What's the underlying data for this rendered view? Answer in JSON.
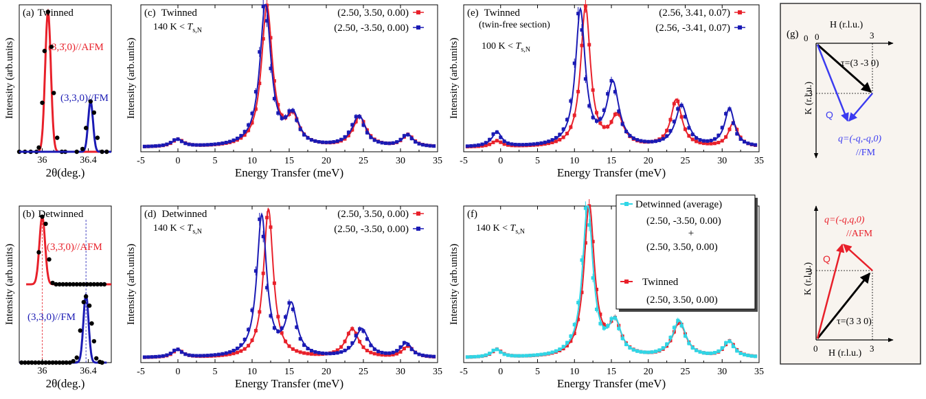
{
  "colors": {
    "red": "#e8202a",
    "blue": "#1a1ab4",
    "cyan": "#2fd6e6",
    "black": "#000000",
    "qblue": "#3b3bf0",
    "inset_bg": "#f8f4ef"
  },
  "chart_data": [
    {
      "id": "a",
      "type": "line",
      "label_prefix": "(a)",
      "title": "Twinned",
      "xlabel": "2θ(deg.)",
      "ylabel": "Intensity (arb.units)",
      "xlim": [
        35.8,
        36.6
      ],
      "ylim": [
        0,
        1.05
      ],
      "xticks": [
        {
          "v": 36,
          "t": "36"
        },
        {
          "v": 36.4,
          "t": "36.4"
        }
      ],
      "peaks": [
        {
          "name": "(3,3̄,0)//AFM",
          "color": "#e8202a",
          "center": 36.05,
          "height": 1.0,
          "width": 0.035,
          "points": [
            [
              35.8,
              0
            ],
            [
              35.85,
              0
            ],
            [
              35.9,
              0
            ],
            [
              35.95,
              0
            ],
            [
              35.97,
              0.03
            ],
            [
              36.0,
              0.35
            ],
            [
              36.02,
              0.72
            ],
            [
              36.05,
              1.0
            ],
            [
              36.08,
              0.75
            ],
            [
              36.1,
              0.42
            ],
            [
              36.13,
              0.1
            ],
            [
              36.17,
              0.0
            ],
            [
              36.2,
              0
            ]
          ]
        },
        {
          "name": "(3,3,0)//FM",
          "color": "#1a1ab4",
          "center": 36.42,
          "height": 0.36,
          "width": 0.03,
          "points": [
            [
              36.3,
              0
            ],
            [
              36.35,
              0.02
            ],
            [
              36.38,
              0.17
            ],
            [
              36.42,
              0.36
            ],
            [
              36.45,
              0.28
            ],
            [
              36.48,
              0.1
            ],
            [
              36.52,
              0.0
            ],
            [
              36.56,
              0
            ]
          ]
        }
      ]
    },
    {
      "id": "b",
      "type": "line",
      "label_prefix": "(b)",
      "title": "Detwinned",
      "xlabel": "2θ(deg.)",
      "ylabel": "Intensity (arb.units)",
      "xlim": [
        35.8,
        36.6
      ],
      "ylim": [
        0,
        2.2
      ],
      "xticks": [
        {
          "v": 36,
          "t": "36"
        },
        {
          "v": 36.4,
          "t": "36.4"
        }
      ],
      "peaks": [
        {
          "name": "(3,3̄,0)//AFM",
          "color": "#e8202a",
          "offset": 1.1,
          "center": 36.0,
          "height": 0.95,
          "width": 0.035,
          "points": [
            [
              35.97,
              1.55
            ],
            [
              36.0,
              2.05
            ],
            [
              36.03,
              1.95
            ],
            [
              36.06,
              1.45
            ],
            [
              36.09,
              1.12
            ],
            [
              36.12,
              1.1
            ],
            [
              36.15,
              1.1
            ],
            [
              36.18,
              1.1
            ],
            [
              36.21,
              1.1
            ],
            [
              36.24,
              1.1
            ],
            [
              36.27,
              1.1
            ],
            [
              36.3,
              1.1
            ],
            [
              36.33,
              1.1
            ],
            [
              36.36,
              1.1
            ],
            [
              36.39,
              1.1
            ],
            [
              36.42,
              1.1
            ],
            [
              36.45,
              1.1
            ],
            [
              36.48,
              1.1
            ],
            [
              36.51,
              1.1
            ],
            [
              36.54,
              1.1
            ]
          ]
        },
        {
          "name": "(3,3,0)//FM",
          "color": "#1a1ab4",
          "offset": 0.0,
          "center": 36.38,
          "height": 0.95,
          "width": 0.032,
          "points": [
            [
              35.82,
              0
            ],
            [
              35.85,
              0
            ],
            [
              35.88,
              0
            ],
            [
              35.91,
              0
            ],
            [
              35.94,
              0
            ],
            [
              35.97,
              0
            ],
            [
              36.0,
              0
            ],
            [
              36.03,
              0
            ],
            [
              36.06,
              0
            ],
            [
              36.09,
              0
            ],
            [
              36.12,
              0
            ],
            [
              36.15,
              0
            ],
            [
              36.18,
              0
            ],
            [
              36.21,
              0
            ],
            [
              36.24,
              0
            ],
            [
              36.27,
              0.02
            ],
            [
              36.3,
              0.07
            ],
            [
              36.33,
              0.45
            ],
            [
              36.36,
              0.85
            ],
            [
              36.38,
              0.93
            ],
            [
              36.41,
              0.8
            ],
            [
              36.43,
              0.55
            ],
            [
              36.45,
              0.3
            ],
            [
              36.47,
              0.06
            ],
            [
              36.5,
              0.01
            ],
            [
              36.52,
              0
            ]
          ]
        }
      ],
      "vlines": [
        {
          "x": 36.0,
          "color": "#e8202a"
        },
        {
          "x": 36.38,
          "color": "#1a1ab4"
        }
      ]
    },
    {
      "id": "c",
      "type": "line",
      "label_prefix": "(c)",
      "title": "Twinned",
      "condition": "140 K < ",
      "condition_T": "T",
      "condition_sub": "s,N",
      "xlabel": "Energy Transfer (meV)",
      "ylabel": "Intensity (arb.units)",
      "xlim": [
        -5,
        35
      ],
      "ylim": [
        0,
        1.0
      ],
      "xticks": [
        -5,
        0,
        5,
        10,
        15,
        20,
        25,
        30,
        35
      ],
      "series": [
        {
          "name": "(2.50, 3.50, 0.00)",
          "color": "#e8202a",
          "base": 0.03,
          "peaks": [
            [
              0,
              0.05,
              0.9
            ],
            [
              12.0,
              0.95,
              0.9
            ],
            [
              15.5,
              0.18,
              1.0
            ],
            [
              24.5,
              0.2,
              1.1
            ],
            [
              31.0,
              0.08,
              0.9
            ]
          ]
        },
        {
          "name": "(2.50, -3.50, 0.00)",
          "color": "#1a1ab4",
          "base": 0.03,
          "peaks": [
            [
              0,
              0.05,
              0.9
            ],
            [
              11.8,
              0.97,
              0.9
            ],
            [
              15.5,
              0.2,
              1.0
            ],
            [
              24.4,
              0.21,
              1.1
            ],
            [
              31.0,
              0.08,
              0.9
            ]
          ]
        }
      ]
    },
    {
      "id": "d",
      "type": "line",
      "label_prefix": "(d)",
      "title": "Detwinned",
      "condition": "140 K < ",
      "condition_T": "T",
      "condition_sub": "s,N",
      "xlabel": "Energy Transfer (meV)",
      "ylabel": "Intensity (arb.units)",
      "xlim": [
        -5,
        35
      ],
      "ylim": [
        0,
        1.0
      ],
      "xticks": [
        -5,
        0,
        5,
        10,
        15,
        20,
        25,
        30,
        35
      ],
      "series": [
        {
          "name": "(2.50, 3.50, 0.00)",
          "color": "#e8202a",
          "base": 0.03,
          "peaks": [
            [
              0,
              0.05,
              0.8
            ],
            [
              12.2,
              0.95,
              0.8
            ],
            [
              23.5,
              0.18,
              1.1
            ],
            [
              31.0,
              0.07,
              0.9
            ]
          ]
        },
        {
          "name": "(2.50, -3.50, 0.00)",
          "color": "#1a1ab4",
          "base": 0.03,
          "peaks": [
            [
              0,
              0.05,
              0.8
            ],
            [
              11.3,
              0.9,
              0.8
            ],
            [
              15.3,
              0.32,
              0.9
            ],
            [
              24.8,
              0.18,
              1.1
            ],
            [
              30.8,
              0.09,
              0.9
            ]
          ]
        }
      ]
    },
    {
      "id": "e",
      "type": "line",
      "label_prefix": "(e)",
      "title": "Twinned",
      "subtitle": "(twin-free section)",
      "condition": "100 K < ",
      "condition_T": "T",
      "condition_sub": "s,N",
      "xlabel": "Energy Transfer (meV)",
      "ylabel": "Intensity (arb.units)",
      "xlim": [
        -5,
        35
      ],
      "ylim": [
        0,
        1.0
      ],
      "xticks": [
        -5,
        0,
        5,
        10,
        15,
        20,
        25,
        30,
        35
      ],
      "series": [
        {
          "name": "(2.56, 3.41, 0.07)",
          "color": "#e8202a",
          "base": 0.03,
          "peaks": [
            [
              -0.5,
              0.04,
              0.8
            ],
            [
              11.5,
              0.95,
              0.8
            ],
            [
              15.8,
              0.2,
              1.0
            ],
            [
              23.8,
              0.32,
              0.9
            ],
            [
              31.5,
              0.16,
              0.8
            ]
          ]
        },
        {
          "name": "(2.56, -3.41, 0.07)",
          "color": "#1a1ab4",
          "base": 0.03,
          "peaks": [
            [
              -0.5,
              0.1,
              0.8
            ],
            [
              10.8,
              0.92,
              0.8
            ],
            [
              15.2,
              0.42,
              1.0
            ],
            [
              24.5,
              0.28,
              1.0
            ],
            [
              31.0,
              0.26,
              0.8
            ]
          ]
        }
      ]
    },
    {
      "id": "f",
      "type": "line",
      "label_prefix": "(f)",
      "condition": "140 K < ",
      "condition_T": "T",
      "condition_sub": "s,N",
      "xlabel": "Energy Transfer (meV)",
      "ylabel": "Intensity (arb.units)",
      "xlim": [
        -5,
        35
      ],
      "ylim": [
        0,
        1.0
      ],
      "xticks": [
        -5,
        0,
        5,
        10,
        15,
        20,
        25,
        30,
        35
      ],
      "legend": {
        "detwinned_label": "Detwinned (average)",
        "detwinned_q1": "(2.50, -3.50, 0.00)",
        "plus": "+",
        "detwinned_q2": "(2.50, 3.50, 0.00)",
        "twinned_label": "Twinned",
        "twinned_q": "(2.50, 3.50, 0.00)"
      },
      "series": [
        {
          "name": "Twinned",
          "color": "#e8202a",
          "base": 0.03,
          "peaks": [
            [
              -0.5,
              0.05,
              0.8
            ],
            [
              12.0,
              0.97,
              0.85
            ],
            [
              15.5,
              0.2,
              1.0
            ],
            [
              24.2,
              0.22,
              1.1
            ],
            [
              31.0,
              0.1,
              0.9
            ]
          ]
        },
        {
          "name": "Detwinned (average)",
          "color": "#2fd6e6",
          "base": 0.03,
          "peaks": [
            [
              -0.5,
              0.05,
              0.8
            ],
            [
              11.8,
              0.97,
              0.85
            ],
            [
              15.5,
              0.21,
              1.0
            ],
            [
              24.2,
              0.23,
              1.1
            ],
            [
              31.0,
              0.1,
              0.9
            ]
          ]
        }
      ]
    }
  ],
  "inset": {
    "label": "(g)",
    "top": {
      "h_axis": "H (r.l.u.)",
      "k_axis": "K (r.l.u.)",
      "origin": "0",
      "h_tick": "3",
      "k_tick": "-3",
      "tau": "τ=(3 -3 0)",
      "Q": "Q",
      "q": "q=(-q,-q,0)",
      "q_type": "//FM"
    },
    "bottom": {
      "h_axis": "H (r.l.u.)",
      "k_axis": "K (r.l.u.)",
      "origin": "0",
      "h_tick": "3",
      "k_tick": "3",
      "tau": "τ=(3 3 0)",
      "Q": "Q",
      "q": "q=(-q,q,0)",
      "q_type": "//AFM"
    }
  }
}
